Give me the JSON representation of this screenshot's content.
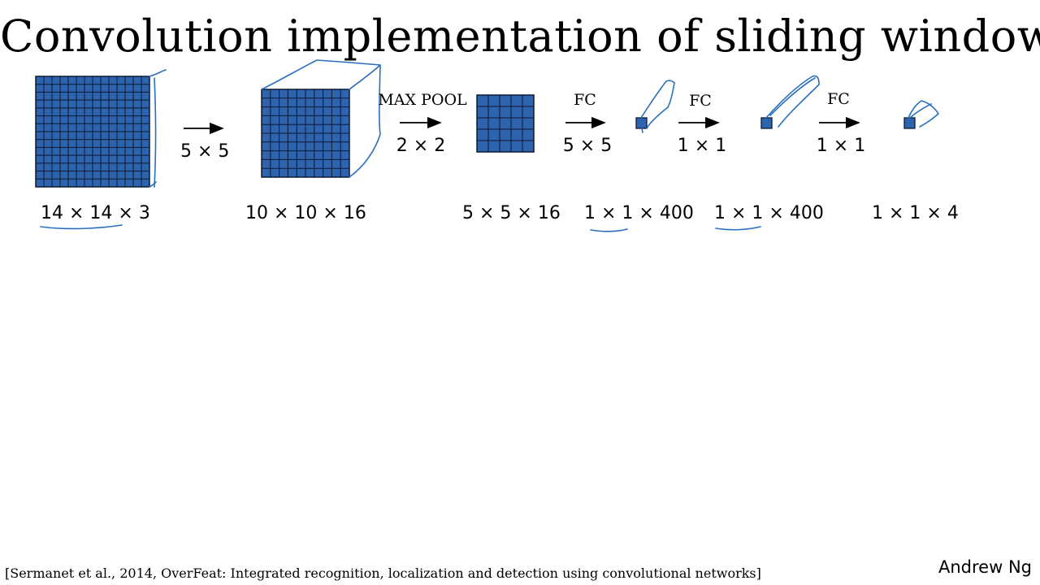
{
  "slide": {
    "title": "Convolution implementation of sliding windows",
    "citation": "[Sermanet et al., 2014, OverFeat: Integrated recognition, localization and detection using convolutional networks]",
    "author": "Andrew Ng"
  },
  "colors": {
    "volume_fill": "#2e63ad",
    "grid_line": "#0b1a33",
    "annotation_ink": "#2a6fbd"
  },
  "stages": [
    {
      "dimension": "14 × 14",
      "depth": " × 3",
      "grid_cells": 14
    },
    {
      "dimension": "10 × 10 × 16",
      "grid_cells": 10
    },
    {
      "dimension": "5 × 5 × 16",
      "grid_cells": 5
    },
    {
      "dimension": "1 × 1",
      "depth": " × 400",
      "grid_cells": 1
    },
    {
      "dimension": "1 × 1",
      "depth": " × 400",
      "grid_cells": 1
    },
    {
      "dimension": "1 × 1 × 4",
      "grid_cells": 1
    }
  ],
  "operations": [
    {
      "label": "",
      "param": "5 × 5"
    },
    {
      "label": "MAX POOL",
      "param": "2 × 2"
    },
    {
      "label": "FC",
      "param": "5 × 5"
    },
    {
      "label": "FC",
      "param": "1 × 1"
    },
    {
      "label": "FC",
      "param": "1 × 1"
    }
  ]
}
